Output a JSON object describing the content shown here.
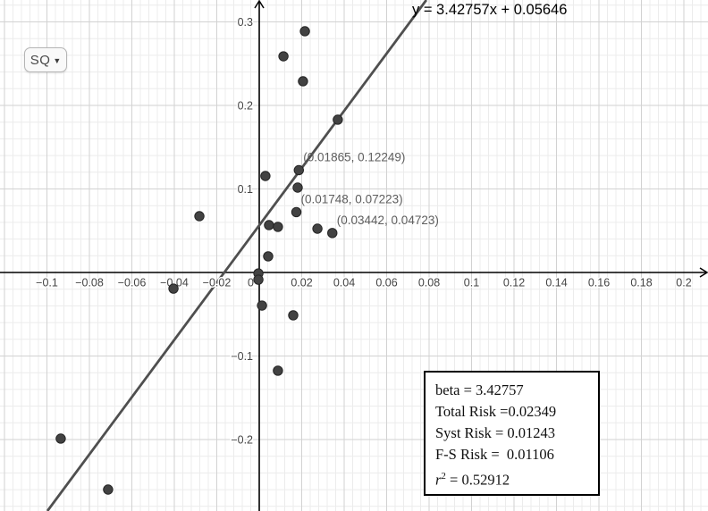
{
  "equation_label": "y = 3.42757x + 0.05646",
  "sq_button": {
    "label": "SQ",
    "dropdown_glyph": "▼"
  },
  "info_box": {
    "beta_line": "beta = 3.42757",
    "total_risk_line": "Total Risk =0.02349",
    "syst_risk_line": "Syst Risk = 0.01243",
    "fs_risk_line": "F-S Risk =  0.01106",
    "r2_var": "r",
    "r2_sup": "2",
    "r2_rest": " = 0.52912"
  },
  "colors": {
    "grid_major": "#d2d2d2",
    "grid_minor": "#ececec",
    "axis": "#000000",
    "point_fill": "#424242",
    "point_stroke": "#242424",
    "regression_line": "#4f4f4f",
    "tick_label": "#444444",
    "point_label": "#5e5e5e",
    "equation": "#000000"
  },
  "chart_data": {
    "type": "scatter",
    "title": "",
    "xlabel": "",
    "ylabel": "",
    "grid": true,
    "x_axis": {
      "min": -0.12211,
      "max": 0.21137,
      "major_step": 0.02,
      "minor_step": 0.004,
      "ticks": [
        {
          "v": -0.1,
          "t": "−0.1"
        },
        {
          "v": -0.08,
          "t": "−0.08"
        },
        {
          "v": -0.06,
          "t": "−0.06"
        },
        {
          "v": -0.04,
          "t": "−0.04"
        },
        {
          "v": -0.02,
          "t": "−0.02"
        },
        {
          "v": 0,
          "t": "0"
        },
        {
          "v": 0.02,
          "t": "0.02"
        },
        {
          "v": 0.04,
          "t": "0.04"
        },
        {
          "v": 0.06,
          "t": "0.06"
        },
        {
          "v": 0.08,
          "t": "0.08"
        },
        {
          "v": 0.1,
          "t": "0.1"
        },
        {
          "v": 0.12,
          "t": "0.12"
        },
        {
          "v": 0.14,
          "t": "0.14"
        },
        {
          "v": 0.16,
          "t": "0.16"
        },
        {
          "v": 0.18,
          "t": "0.18"
        },
        {
          "v": 0.2,
          "t": "0.2"
        }
      ]
    },
    "y_axis": {
      "min": -0.28556,
      "max": 0.3262,
      "major_step": 0.1,
      "minor_step": 0.02,
      "ticks": [
        {
          "v": 0.3,
          "t": "0.3"
        },
        {
          "v": 0.2,
          "t": "0.2"
        },
        {
          "v": 0.1,
          "t": "0.1"
        },
        {
          "v": -0.1,
          "t": "−0.1"
        },
        {
          "v": -0.2,
          "t": "−0.2"
        }
      ]
    },
    "regression": {
      "slope": 3.42757,
      "intercept": 0.05646,
      "equation": "y = 3.42757x + 0.05646"
    },
    "points": [
      [
        0.0215,
        0.2888
      ],
      [
        0.0114,
        0.2588
      ],
      [
        0.0206,
        0.2289
      ],
      [
        0.037,
        0.1829
      ],
      [
        0.01865,
        0.12249
      ],
      [
        0.0029,
        0.1155
      ],
      [
        0.0181,
        0.1016
      ],
      [
        0.01748,
        0.07223
      ],
      [
        -0.0282,
        0.0674
      ],
      [
        0.0046,
        0.0567
      ],
      [
        0.0088,
        0.0546
      ],
      [
        0.0274,
        0.0524
      ],
      [
        0.03442,
        0.04723
      ],
      [
        0.0042,
        0.0193
      ],
      [
        -0.0004,
        -0.0011
      ],
      [
        -0.0004,
        -0.0086
      ],
      [
        -0.0404,
        -0.0193
      ],
      [
        0.0013,
        -0.0396
      ],
      [
        0.016,
        -0.0513
      ],
      [
        0.0088,
        -0.1176
      ],
      [
        -0.0935,
        -0.1989
      ],
      [
        -0.0712,
        -0.2599
      ]
    ],
    "labeled_points": [
      {
        "x": 0.01865,
        "y": 0.12249,
        "label": "(0.01865, 0.12249)"
      },
      {
        "x": 0.01748,
        "y": 0.07223,
        "label": "(0.01748, 0.07223)"
      },
      {
        "x": 0.03442,
        "y": 0.04723,
        "label": "(0.03442, 0.04723)"
      }
    ],
    "stats": {
      "beta": 3.42757,
      "total_risk": 0.02349,
      "syst_risk": 0.01243,
      "fs_risk": 0.01106,
      "r_squared": 0.52912
    }
  }
}
